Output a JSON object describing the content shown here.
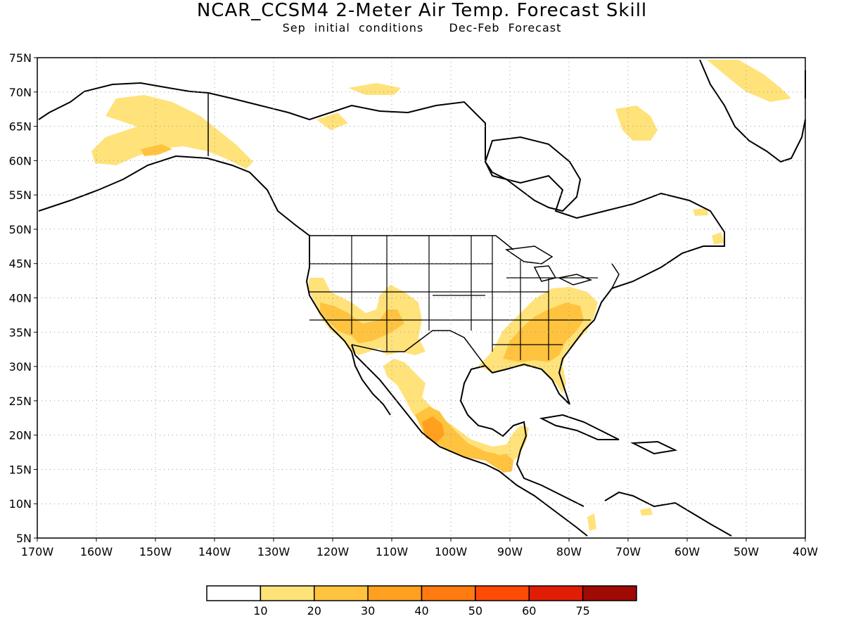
{
  "title": "NCAR_CCSM4 2-Meter Air Temp. Forecast Skill",
  "subtitle_left": "Sep initial conditions",
  "subtitle_right": "Dec-Feb Forecast",
  "map": {
    "lon_range": [
      -170,
      -40
    ],
    "lat_range": [
      5,
      75
    ],
    "lat_labels": [
      "75N",
      "70N",
      "65N",
      "60N",
      "55N",
      "50N",
      "45N",
      "40N",
      "35N",
      "30N",
      "25N",
      "20N",
      "15N",
      "10N",
      "5N"
    ],
    "lon_labels": [
      "170W",
      "160W",
      "150W",
      "140W",
      "130W",
      "120W",
      "110W",
      "100W",
      "90W",
      "80W",
      "70W",
      "60W",
      "50W",
      "40W"
    ],
    "grid": true
  },
  "colorbar": {
    "colors": [
      "#ffffff",
      "#ffe27a",
      "#ffc340",
      "#ffa01e",
      "#ff7a10",
      "#ff4a08",
      "#e01e05",
      "#a00a05"
    ],
    "labels": [
      "10",
      "20",
      "30",
      "40",
      "50",
      "60",
      "75"
    ]
  },
  "skill_regions": [
    {
      "name": "alaska",
      "level": 1
    },
    {
      "name": "alaska-core",
      "level": 2
    },
    {
      "name": "western-us",
      "level": 1
    },
    {
      "name": "western-us-core",
      "level": 2
    },
    {
      "name": "southeast-us",
      "level": 1
    },
    {
      "name": "southeast-us-core",
      "level": 2
    },
    {
      "name": "mexico",
      "level": 1
    },
    {
      "name": "mexico-core",
      "level": 2
    },
    {
      "name": "mexico-peak",
      "level": 3
    },
    {
      "name": "central-america",
      "level": 2
    },
    {
      "name": "greenland",
      "level": 1
    },
    {
      "name": "labrador",
      "level": 1
    },
    {
      "name": "arctic-islands",
      "level": 1
    },
    {
      "name": "newfoundland",
      "level": 1
    },
    {
      "name": "caribbean",
      "level": 1
    }
  ]
}
